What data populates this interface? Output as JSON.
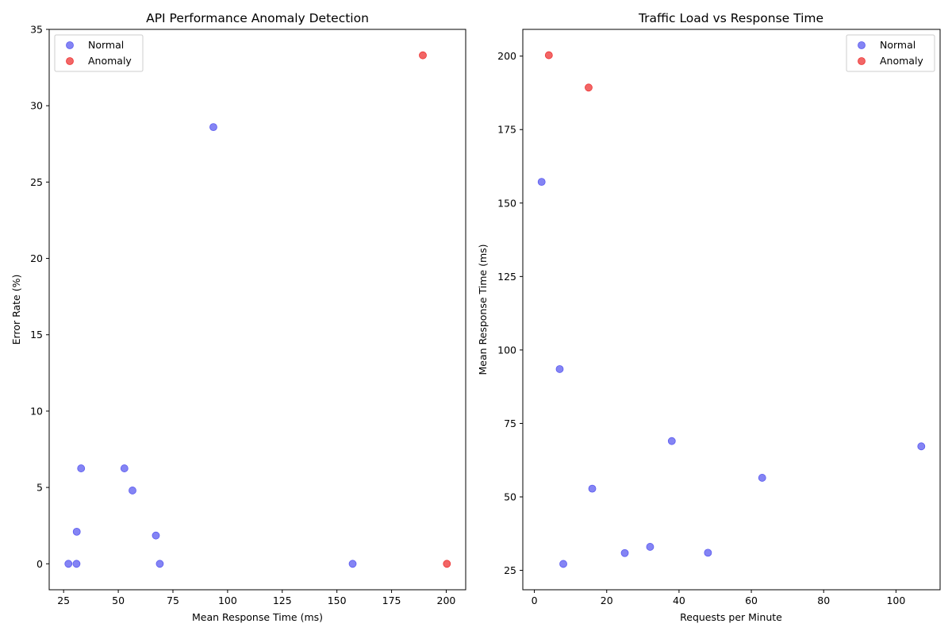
{
  "colors": {
    "normal": "#5b5bf0",
    "anomaly": "#ee3333"
  },
  "chart_data": [
    {
      "type": "scatter",
      "title": "API Performance Anomaly Detection",
      "xlabel": "Mean Response Time (ms)",
      "ylabel": "Error Rate (%)",
      "xlim": [
        18.4,
        208.9
      ],
      "ylim": [
        -1.7,
        35
      ],
      "xticks": [
        25,
        50,
        75,
        100,
        125,
        150,
        175,
        200
      ],
      "yticks": [
        0,
        5,
        10,
        15,
        20,
        25,
        30,
        35
      ],
      "legend_position": "upper-left",
      "series": [
        {
          "name": "Normal",
          "points": [
            [
              93.5,
              28.6
            ],
            [
              33.0,
              6.25
            ],
            [
              52.8,
              6.25
            ],
            [
              56.5,
              4.8
            ],
            [
              31.0,
              2.1
            ],
            [
              67.2,
              1.85
            ],
            [
              27.2,
              0.0
            ],
            [
              30.9,
              0.0
            ],
            [
              69.0,
              0.0
            ],
            [
              157.2,
              0.0
            ]
          ]
        },
        {
          "name": "Anomaly",
          "points": [
            [
              189.3,
              33.3
            ],
            [
              200.3,
              0.0
            ]
          ]
        }
      ]
    },
    {
      "type": "scatter",
      "title": "Traffic Load vs Response Time",
      "xlabel": "Requests per Minute",
      "ylabel": "Mean Response Time (ms)",
      "xlim": [
        -3.2,
        112.2
      ],
      "ylim": [
        18.4,
        209.1
      ],
      "xticks": [
        0,
        20,
        40,
        60,
        80,
        100
      ],
      "yticks": [
        25,
        50,
        75,
        100,
        125,
        150,
        175,
        200
      ],
      "legend_position": "upper-right",
      "series": [
        {
          "name": "Normal",
          "points": [
            [
              2,
              157.2
            ],
            [
              7,
              93.5
            ],
            [
              38,
              69.0
            ],
            [
              107,
              67.2
            ],
            [
              63,
              56.5
            ],
            [
              16,
              52.8
            ],
            [
              32,
              33.0
            ],
            [
              48,
              31.0
            ],
            [
              25,
              30.9
            ],
            [
              8,
              27.2
            ]
          ]
        },
        {
          "name": "Anomaly",
          "points": [
            [
              4,
              200.3
            ],
            [
              15,
              189.3
            ]
          ]
        }
      ]
    }
  ]
}
